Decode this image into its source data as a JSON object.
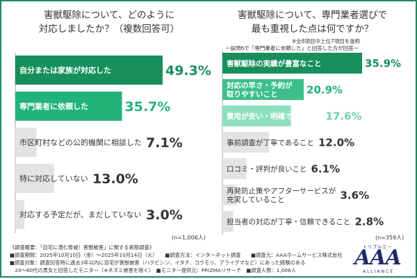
{
  "chart_data": [
    {
      "type": "bar",
      "title": "害獣駆除について、どのように\n対応しましたか？（複数回答可）",
      "categories": [
        "自分または家族が対応した",
        "専門業者に依頼した",
        "市区町村などの公的機関に相談した",
        "特に対応していない",
        "対応する予定だが、まだしていない"
      ],
      "values": [
        49.3,
        35.7,
        7.1,
        13.0,
        3.0
      ],
      "value_labels": [
        "49.3%",
        "35.7%",
        "7.1%",
        "13.0%",
        "3.0%"
      ],
      "n_label": "(n=1,006人)",
      "colors": [
        "#178f5c",
        "#21b37a",
        "#e3e3e3",
        "#e3e3e3",
        "#e3e3e3"
      ]
    },
    {
      "type": "bar",
      "title": "害獣駆除について、専門業者選びで\n最も重視した点は何ですか？",
      "notes": [
        "※全8項目中上位7項目を抜粋",
        "ー設問6で「専門業者に依頼した」と回答した方が回答ー"
      ],
      "categories": [
        "害獣駆除の実績が豊富なこと",
        "対応の早さ・予約が\n取りやすいこと",
        "費用が安い・明確であること",
        "事前調査が丁寧であること",
        "口コミ・評判が良いこと",
        "再発防止策やアフターサービスが\n充実していること",
        "担当者の対応が丁寧・信頼できること"
      ],
      "values": [
        35.9,
        20.9,
        17.6,
        12.0,
        6.1,
        3.6,
        2.8
      ],
      "value_labels": [
        "35.9%",
        "20.9%",
        "17.6%",
        "12.0%",
        "6.1%",
        "3.6%",
        "2.8%"
      ],
      "n_label": "(n=359人)",
      "colors": [
        "#178f5c",
        "#3dbf8c",
        "#8ddfbd",
        "#e3e3e3",
        "#e3e3e3",
        "#e3e3e3",
        "#e3e3e3"
      ]
    }
  ],
  "footer": {
    "lines": [
      "《調査概要：「自宅に潜む脅威！害獣被害」に関する実態調査》",
      "■調査期間：2025年10月10日（金）〜2025年10月14日（火）　　■調査方法：インターネット調査　　■調査元：AAAホームサービス株式会社",
      "■調査対象：調査回答時に過去3年以内に自宅が害獣被害（ハクビシン、イタチ、コウモリ、アライグマなど）にあった経験のある",
      "　20〜60代の男女と回答したモニター（※ネズミ被害を除く）　■モニター提供元：PRIZMAリサーチ　■調査人数：1,006人"
    ]
  },
  "logo": {
    "top": "トリプルエー",
    "main": "AAA",
    "bottom": "ALLIANCE"
  }
}
